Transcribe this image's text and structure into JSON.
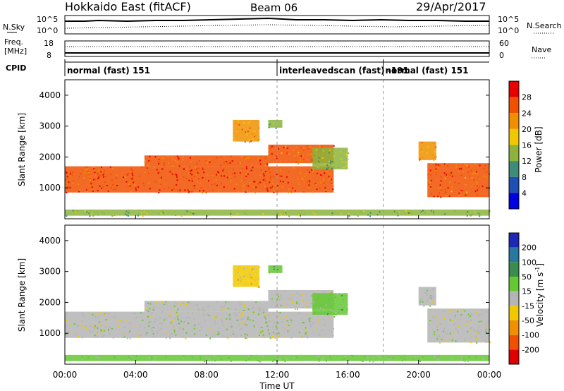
{
  "header": {
    "station": "Hokkaido East (fitACF)",
    "beam": "Beam 06",
    "date": "29/Apr/2017"
  },
  "noise_panel": {
    "left_label": "N.Sky",
    "right_label": "N.Search",
    "ticks_left": [
      "10^5",
      "10^0"
    ],
    "ticks_right": [
      "10^5",
      "10^0"
    ]
  },
  "freq_panel": {
    "left_label_1": "Freq.",
    "left_label_2": "[MHz]",
    "right_label": "Nave",
    "ticks_left": [
      "18",
      "8"
    ],
    "ticks_right": [
      "60",
      "0"
    ]
  },
  "cpid_panel": {
    "label": "CPID",
    "segments": [
      {
        "text": "normal (fast) 151",
        "start_h": 0,
        "end_h": 12
      },
      {
        "text": "interleavedscan (fast) -191",
        "start_h": 12,
        "end_h": 18
      },
      {
        "text": "normal (fast) 151",
        "start_h": 18,
        "end_h": 24
      }
    ]
  },
  "power_panel": {
    "ylabel": "Slant Range [km]",
    "yticks": [
      "1000",
      "2000",
      "3000",
      "4000"
    ],
    "colorbar_label": "Power [dB]",
    "colorbar_ticks": [
      "4",
      "8",
      "12",
      "16",
      "20",
      "24",
      "28"
    ],
    "colors": [
      "#0000e0",
      "#1e50b4",
      "#3c8c78",
      "#8cb43c",
      "#f0c800",
      "#f09000",
      "#f05000",
      "#e80000"
    ]
  },
  "velocity_panel": {
    "ylabel": "Slant Range [km]",
    "yticks": [
      "1000",
      "2000",
      "3000",
      "4000"
    ],
    "colorbar_label": "Velocity [m s",
    "colorbar_sup": "-1",
    "colorbar_label_end": "]",
    "colorbar_ticks": [
      "200",
      "100",
      "50",
      "15",
      "-15",
      "-50",
      "-100",
      "-200"
    ],
    "colors": [
      "#1e28b4",
      "#2878a0",
      "#3c8c50",
      "#64c832",
      "#b4b4b4",
      "#f0c800",
      "#f09000",
      "#f05000",
      "#e00000"
    ]
  },
  "xaxis": {
    "label": "Time UT",
    "ticks": [
      "00:00",
      "04:00",
      "08:00",
      "12:00",
      "16:00",
      "20:00",
      "00:00"
    ]
  },
  "chart_data": {
    "type": "heatmap",
    "title": "Hokkaido East (fitACF)",
    "xlabel": "Time UT",
    "ylabel": "Slant Range [km]",
    "xlim": [
      0,
      24
    ],
    "ylim": [
      0,
      4500
    ],
    "power_clim": [
      0,
      32
    ],
    "velocity_clim": [
      -250,
      250
    ],
    "regions": [
      {
        "t0": 0.0,
        "t1": 15.2,
        "r_low": 850,
        "r_high": 1700,
        "power": 27,
        "velocity": 0
      },
      {
        "t0": 4.5,
        "t1": 11.5,
        "r_low": 1700,
        "r_high": 2050,
        "power": 26,
        "velocity": -5
      },
      {
        "t0": 11.5,
        "t1": 15.2,
        "r_low": 1800,
        "r_high": 2400,
        "power": 25,
        "velocity": -5
      },
      {
        "t0": 14.0,
        "t1": 16.0,
        "r_low": 1600,
        "r_high": 2300,
        "power": 14,
        "velocity": 30
      },
      {
        "t0": 20.5,
        "t1": 24.0,
        "r_low": 700,
        "r_high": 1800,
        "power": 25,
        "velocity": 0
      },
      {
        "t0": 20.0,
        "t1": 21.0,
        "r_low": 1900,
        "r_high": 2500,
        "power": 22,
        "velocity": 5
      },
      {
        "t0": 9.5,
        "t1": 11.0,
        "r_low": 2500,
        "r_high": 3200,
        "power": 22,
        "velocity": -30
      },
      {
        "t0": 11.5,
        "t1": 12.3,
        "r_low": 2950,
        "r_high": 3200,
        "power": 12,
        "velocity": 40
      },
      {
        "t0": 0.0,
        "t1": 24.0,
        "r_low": 100,
        "r_high": 300,
        "power": 14,
        "velocity": 20
      }
    ]
  }
}
